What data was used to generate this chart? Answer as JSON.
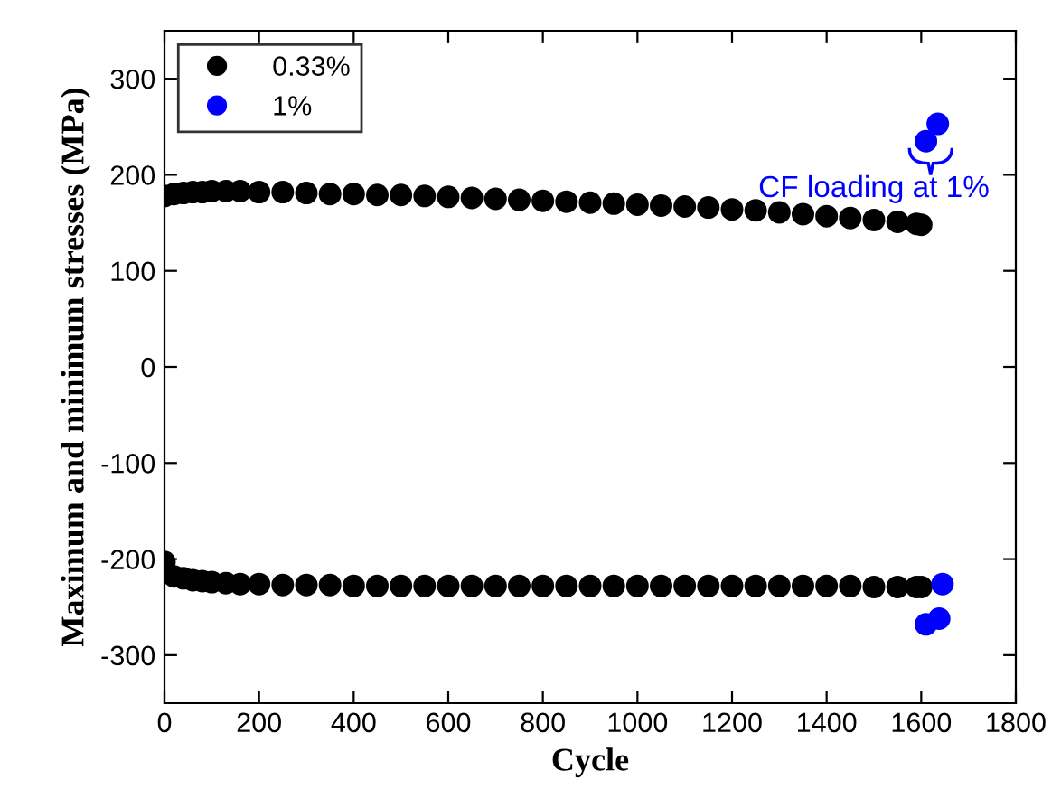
{
  "chart_data": {
    "type": "scatter",
    "xlabel": "Cycle",
    "ylabel": "Maximum and minimum stresses (MPa)",
    "xlim": [
      0,
      1800
    ],
    "ylim": [
      -350,
      350
    ],
    "xticks": [
      0,
      200,
      400,
      600,
      800,
      1000,
      1200,
      1400,
      1600,
      1800
    ],
    "yticks": [
      -300,
      -200,
      -100,
      0,
      100,
      200,
      300
    ],
    "marker": "circle",
    "legend": "top left",
    "grid": false,
    "annotations": [
      "CF loading at 1%"
    ],
    "series": [
      {
        "name": "0.33%",
        "color": "#000000",
        "x": [
          0,
          20,
          40,
          60,
          80,
          100,
          130,
          160,
          200,
          250,
          300,
          350,
          400,
          450,
          500,
          550,
          600,
          650,
          700,
          750,
          800,
          850,
          900,
          950,
          1000,
          1050,
          1100,
          1150,
          1200,
          1250,
          1300,
          1350,
          1400,
          1450,
          1500,
          1550,
          1590,
          1600,
          0,
          20,
          40,
          60,
          80,
          100,
          130,
          160,
          200,
          250,
          300,
          350,
          400,
          450,
          500,
          550,
          600,
          650,
          700,
          750,
          800,
          850,
          900,
          950,
          1000,
          1050,
          1100,
          1150,
          1200,
          1250,
          1300,
          1350,
          1400,
          1450,
          1500,
          1550,
          1590,
          1600
        ],
        "values": [
          178,
          180,
          181,
          182,
          182,
          183,
          183,
          183,
          182,
          182,
          181,
          180,
          180,
          179,
          179,
          178,
          177,
          176,
          175,
          174,
          173,
          172,
          171,
          170,
          169,
          168,
          167,
          166,
          164,
          163,
          161,
          159,
          157,
          155,
          153,
          151,
          149,
          148,
          -203,
          -218,
          -220,
          -222,
          -223,
          -224,
          -225,
          -226,
          -226,
          -227,
          -227,
          -227,
          -228,
          -228,
          -228,
          -228,
          -228,
          -228,
          -228,
          -228,
          -228,
          -228,
          -228,
          -228,
          -228,
          -228,
          -228,
          -228,
          -228,
          -228,
          -228,
          -228,
          -228,
          -228,
          -229,
          -229,
          -229,
          -229
        ]
      },
      {
        "name": "1%",
        "color": "#0000ff",
        "x": [
          1610,
          1635,
          1610,
          1638,
          1645
        ],
        "values": [
          235,
          253,
          -268,
          -262,
          -226
        ]
      }
    ]
  }
}
